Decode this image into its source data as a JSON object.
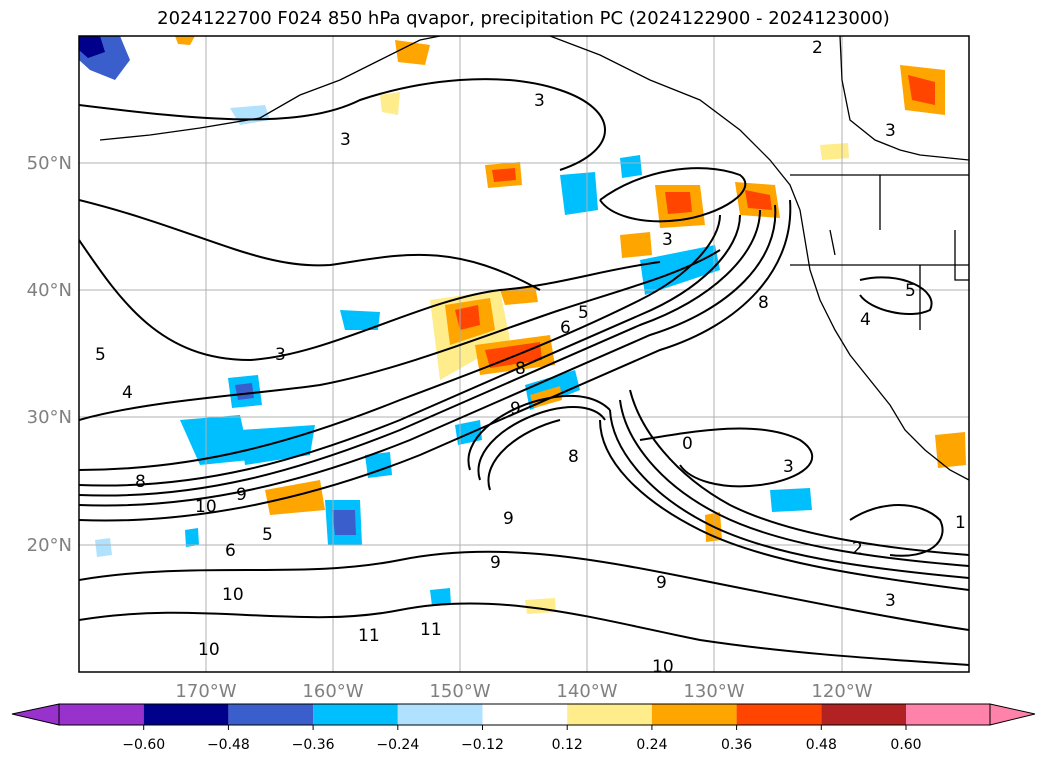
{
  "title": "2024122700 F024 850 hPa qvapor, precipitation PC (2024122900 - 2024123000)",
  "lat_labels": [
    "50°N",
    "40°N",
    "30°N",
    "20°N"
  ],
  "lon_labels": [
    "170°W",
    "160°W",
    "150°W",
    "140°W",
    "130°W",
    "120°W"
  ],
  "colorbar": {
    "ticks": [
      "−0.60",
      "−0.48",
      "−0.36",
      "−0.24",
      "−0.12",
      "0.12",
      "0.24",
      "0.36",
      "0.48",
      "0.60"
    ],
    "colors": [
      "#9932cc",
      "#00008b",
      "#3a5fcd",
      "#00bfff",
      "#b0e2ff",
      "#ffffff",
      "#ffec8b",
      "#ffa500",
      "#ff4500",
      "#b22222",
      "#ff82ab"
    ]
  },
  "contour_labels": [
    "2",
    "3",
    "3",
    "3",
    "5",
    "4",
    "3",
    "8",
    "9",
    "10",
    "5",
    "6",
    "8",
    "9",
    "10",
    "11",
    "10",
    "11",
    "9",
    "9",
    "8",
    "9",
    "10",
    "3",
    "2",
    "3",
    "5",
    "4",
    "0",
    "1",
    "6",
    "8",
    "5",
    "3"
  ],
  "colors": {
    "border": "#000000",
    "grid": "#b0b0b0",
    "land": "#000000"
  }
}
